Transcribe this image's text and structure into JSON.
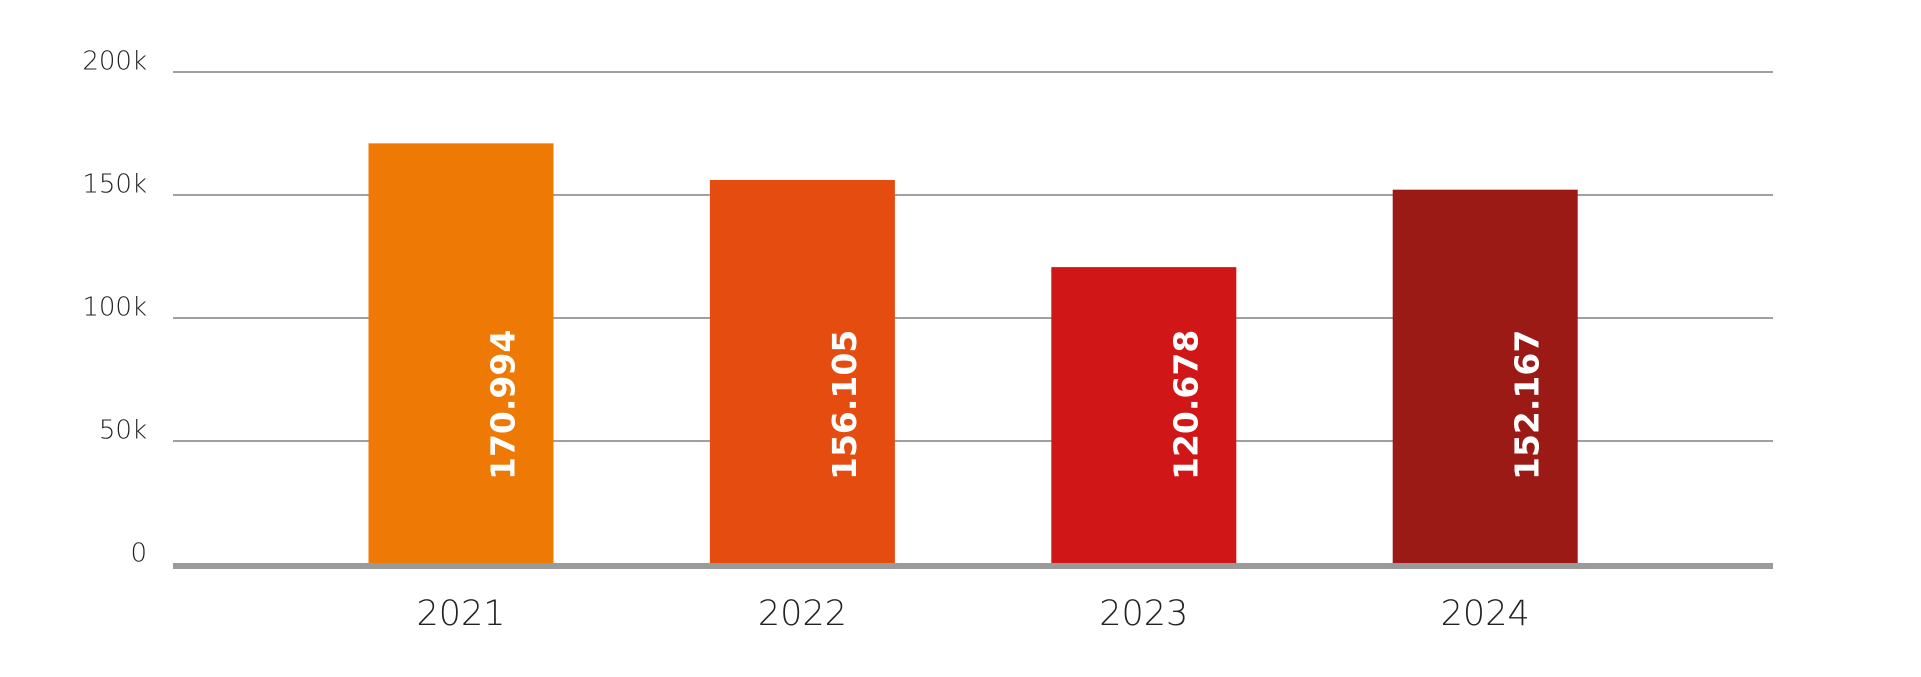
{
  "chart_data": {
    "type": "bar",
    "categories": [
      "2021",
      "2022",
      "2023",
      "2024"
    ],
    "values": [
      170994,
      156105,
      120678,
      152167
    ],
    "value_labels": [
      "170.994",
      "156.105",
      "120.678",
      "152.167"
    ],
    "colors": [
      "#ee7a05",
      "#e54c10",
      "#d01616",
      "#9b1a15"
    ],
    "ylim": [
      0,
      200000
    ],
    "yticks": [
      0,
      {
        "value": 50000,
        "label": "50k"
      },
      {
        "value": 100000,
        "label": "100k"
      },
      {
        "value": 150000,
        "label": "150k"
      },
      {
        "value": 200000,
        "label": "200k"
      }
    ],
    "grid": true
  }
}
